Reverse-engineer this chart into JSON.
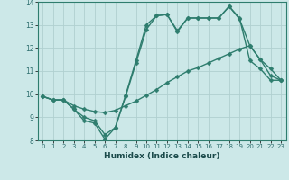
{
  "title": "",
  "xlabel": "Humidex (Indice chaleur)",
  "bg_color": "#cce8e8",
  "grid_color": "#b0d0d0",
  "line_color": "#2e7d6e",
  "xlim": [
    -0.5,
    23.5
  ],
  "ylim": [
    8,
    14
  ],
  "xticks": [
    0,
    1,
    2,
    3,
    4,
    5,
    6,
    7,
    8,
    9,
    10,
    11,
    12,
    13,
    14,
    15,
    16,
    17,
    18,
    19,
    20,
    21,
    22,
    23
  ],
  "yticks": [
    8,
    9,
    10,
    11,
    12,
    13,
    14
  ],
  "line1_x": [
    0,
    1,
    2,
    3,
    4,
    5,
    6,
    7,
    8,
    9,
    10,
    11,
    12,
    13,
    14,
    15,
    16,
    17,
    18,
    19,
    20,
    21,
    22,
    23
  ],
  "line1_y": [
    9.9,
    9.75,
    9.75,
    9.35,
    8.85,
    8.75,
    8.05,
    8.55,
    9.95,
    11.45,
    13.0,
    13.4,
    13.45,
    12.75,
    13.3,
    13.3,
    13.3,
    13.3,
    13.8,
    13.3,
    11.45,
    11.1,
    10.6,
    10.6
  ],
  "line2_x": [
    0,
    1,
    2,
    3,
    4,
    5,
    6,
    7,
    8,
    9,
    10,
    11,
    12,
    13,
    14,
    15,
    16,
    17,
    18,
    19,
    20,
    21,
    22,
    23
  ],
  "line2_y": [
    9.9,
    9.75,
    9.75,
    9.5,
    9.35,
    9.25,
    9.2,
    9.3,
    9.5,
    9.7,
    9.95,
    10.2,
    10.5,
    10.75,
    11.0,
    11.15,
    11.35,
    11.55,
    11.75,
    11.95,
    12.1,
    11.5,
    10.8,
    10.6
  ],
  "line3_x": [
    0,
    1,
    2,
    3,
    4,
    5,
    6,
    7,
    8,
    9,
    10,
    11,
    12,
    13,
    14,
    15,
    16,
    17,
    18,
    19,
    20,
    21,
    22,
    23
  ],
  "line3_y": [
    9.9,
    9.75,
    9.75,
    9.35,
    9.0,
    8.85,
    8.25,
    8.55,
    9.9,
    11.35,
    12.8,
    13.4,
    13.45,
    12.7,
    13.3,
    13.3,
    13.3,
    13.3,
    13.8,
    13.25,
    12.1,
    11.5,
    11.1,
    10.6
  ],
  "markersize": 2.5,
  "linewidth": 1.0
}
